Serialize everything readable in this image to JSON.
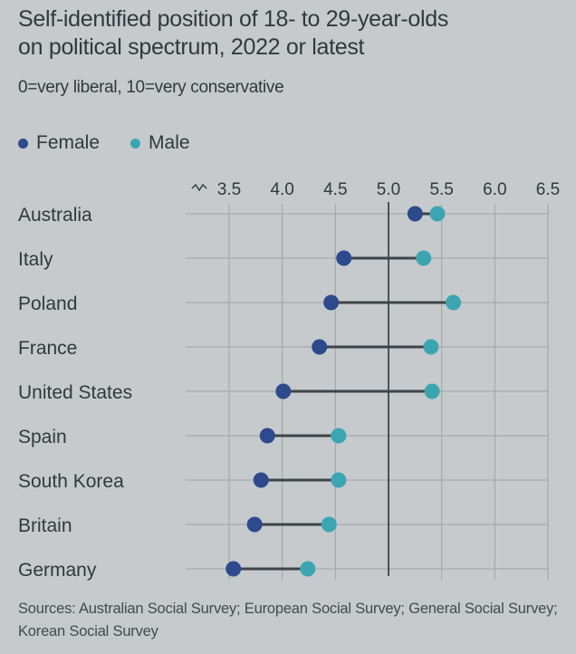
{
  "chart_data": {
    "type": "dumbbell",
    "title": "Self-identified position of 18- to 29-year-olds on political spectrum, 2022 or latest",
    "title_lines": [
      "Self-identified position of 18- to 29-year-olds",
      "on political spectrum, 2022 or latest"
    ],
    "subtitle": "0=very liberal, 10=very conservative",
    "xlabel": "",
    "ylabel": "",
    "xlim": [
      3.5,
      6.5
    ],
    "x_ticks": [
      3.5,
      4.0,
      4.5,
      5.0,
      5.5,
      6.0,
      6.5
    ],
    "x_tick_labels": [
      "3.5",
      "4.0",
      "4.5",
      "5.0",
      "5.5",
      "6.0",
      "6.5"
    ],
    "axis_break": true,
    "reference_line": 5.0,
    "grid": true,
    "legend_position": "top-left",
    "categories": [
      "Australia",
      "Italy",
      "Poland",
      "France",
      "United States",
      "Spain",
      "South Korea",
      "Britain",
      "Germany"
    ],
    "series": [
      {
        "name": "Female",
        "color": "#2c4a8c",
        "values": [
          5.25,
          4.58,
          4.46,
          4.35,
          4.01,
          3.86,
          3.8,
          3.74,
          3.54
        ]
      },
      {
        "name": "Male",
        "color": "#3ba6b2",
        "values": [
          5.46,
          5.33,
          5.61,
          5.4,
          5.41,
          4.53,
          4.53,
          4.44,
          4.24
        ]
      }
    ]
  },
  "legend": [
    {
      "label": "Female",
      "color": "#2c4a8c"
    },
    {
      "label": "Male",
      "color": "#3ba6b2"
    }
  ],
  "sources": "Sources: Australian Social Survey; European Social Survey; General Social Survey; Korean Social Survey",
  "colors": {
    "background": "#c6cacc",
    "gridline": "#9ea3a6",
    "reference_line": "#2f3437",
    "connector": "#3e4447"
  }
}
